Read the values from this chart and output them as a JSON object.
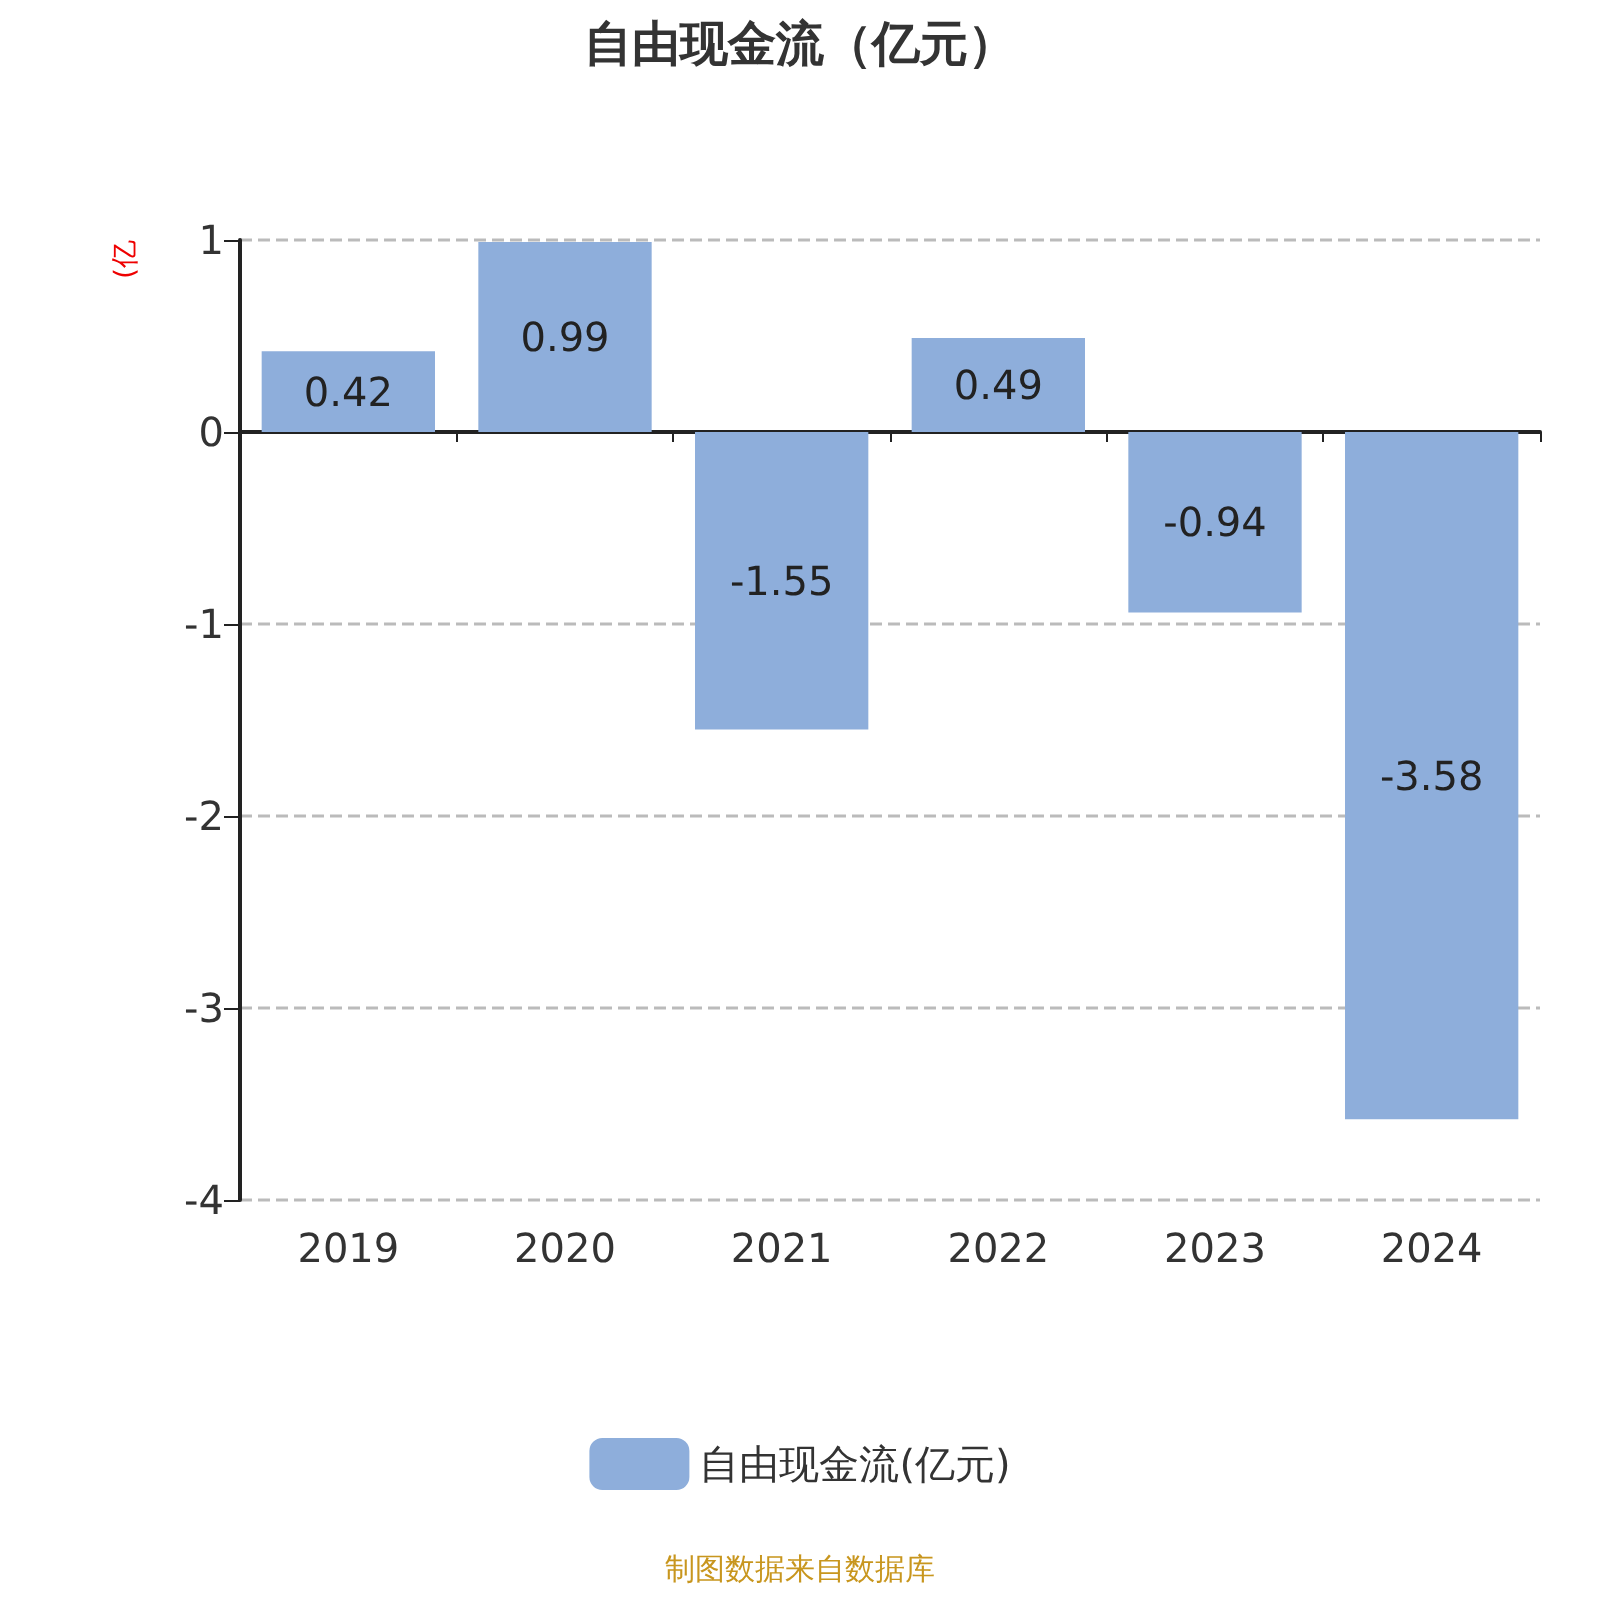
{
  "chart_data": {
    "type": "bar",
    "title": "自由现金流（亿元）",
    "ylabel": "(亿",
    "categories": [
      "2019",
      "2020",
      "2021",
      "2022",
      "2023",
      "2024"
    ],
    "series": [
      {
        "name": "自由现金流(亿元)",
        "color": "#8eaedb",
        "values": [
          0.42,
          0.99,
          -1.55,
          0.49,
          -0.94,
          -3.58
        ]
      }
    ],
    "ylim": [
      -4,
      1
    ],
    "yticks": [
      -4,
      -3,
      -2,
      -1,
      0,
      1
    ],
    "grid": "y",
    "legend": "bottom",
    "data_labels": true,
    "annotations": [
      "制图数据来自数据库"
    ]
  }
}
